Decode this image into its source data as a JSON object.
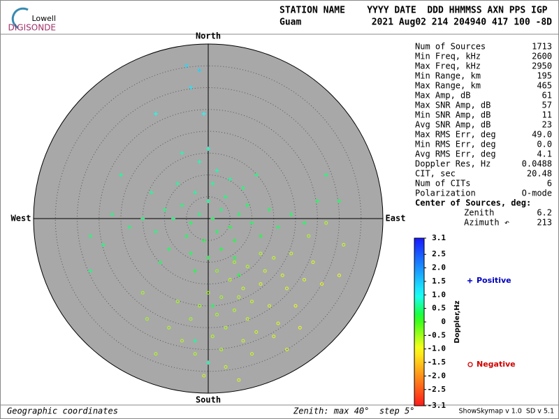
{
  "logo": {
    "top": "Lowell",
    "bottom": "DIGISONDE"
  },
  "header": {
    "labels": "STATION NAME    YYYY DATE  DDD HHMMSS AXN PPS IGP",
    "station": "Guam",
    "values": "2021 Aug02 214 204940 417 100 -8D"
  },
  "stats": [
    [
      "Num of Sources",
      "1713"
    ],
    [
      "Min Freq, kHz",
      "2600"
    ],
    [
      "Max Freq, kHz",
      "2950"
    ],
    [
      "Min Range, km",
      "195"
    ],
    [
      "Max Range, km",
      "465"
    ],
    [
      "Max Amp, dB",
      "61"
    ],
    [
      "Max SNR Amp, dB",
      "57"
    ],
    [
      "Min SNR Amp, dB",
      "11"
    ],
    [
      "Avg SNR Amp, dB",
      "23"
    ],
    [
      "Max RMS Err, deg",
      "49.0"
    ],
    [
      "Min RMS Err, deg",
      "0.0"
    ],
    [
      "Avg RMS Err, deg",
      "4.1"
    ],
    [
      "Doppler Res, Hz",
      "0.0488"
    ],
    [
      "CIT, sec",
      "20.48"
    ],
    [
      "Num of CITs",
      "6"
    ],
    [
      "Polarization",
      "O-mode"
    ]
  ],
  "center": {
    "title": "Center of Sources, deg:",
    "rows": [
      [
        "Zenith",
        "6.2"
      ],
      [
        "Azimuth ↶",
        "213"
      ]
    ]
  },
  "footer": {
    "left": "Geographic coordinates",
    "middle": "Zenith: max 40°  step 5°",
    "right": "ShowSkymap v 1.0  SD v 5.1"
  },
  "chart_data": {
    "type": "skymap",
    "directions": {
      "north": "North",
      "south": "South",
      "west": "West",
      "east": "East"
    },
    "zenith_max": 40,
    "zenith_step": 5,
    "colorbar": {
      "label": "Doppler,Hz",
      "ylim": [
        -3.1,
        3.1
      ],
      "yticks": [
        3.1,
        2.5,
        {
          "value": 2,
          "label": "2.0"
        },
        1.5,
        {
          "value": 1,
          "label": "1.0"
        },
        0.5,
        0,
        -0.5,
        {
          "value": -1,
          "label": "-1.0"
        },
        -1.5,
        {
          "value": -2,
          "label": "-2.0"
        },
        -2.5,
        -3.1
      ]
    },
    "series": [
      {
        "name": "Positive",
        "color": "#0000c0",
        "marker": "+",
        "points": [
          [
            -2,
            1,
            0.5
          ],
          [
            1,
            0,
            0.4
          ],
          [
            3,
            2,
            0.5
          ],
          [
            -4,
            -1,
            0.4
          ],
          [
            5,
            -2,
            0.3
          ],
          [
            0,
            4,
            0.6
          ],
          [
            2,
            -3,
            0.4
          ],
          [
            -6,
            3,
            0.5
          ],
          [
            7,
            1,
            0.4
          ],
          [
            -1,
            -5,
            0.3
          ],
          [
            4,
            5,
            0.5
          ],
          [
            -3,
            6,
            0.6
          ],
          [
            6,
            -5,
            0.3
          ],
          [
            -8,
            0,
            0.5
          ],
          [
            9,
            3,
            0.4
          ],
          [
            1,
            8,
            0.6
          ],
          [
            -5,
            -4,
            0.4
          ],
          [
            3,
            -7,
            0.3
          ],
          [
            10,
            -1,
            0.4
          ],
          [
            -10,
            2,
            0.5
          ],
          [
            0,
            -9,
            0.3
          ],
          [
            2,
            11,
            0.7
          ],
          [
            -7,
            8,
            0.6
          ],
          [
            8,
            7,
            0.5
          ],
          [
            -12,
            -3,
            0.5
          ],
          [
            12,
            -4,
            0.3
          ],
          [
            5,
            9,
            0.6
          ],
          [
            -2,
            13,
            0.7
          ],
          [
            14,
            2,
            0.4
          ],
          [
            -15,
            0,
            0.5
          ],
          [
            -4,
            -8,
            0.4
          ],
          [
            6,
            -9,
            0.3
          ],
          [
            -9,
            -7,
            0.4
          ],
          [
            11,
            10,
            0.5
          ],
          [
            -13,
            6,
            0.6
          ],
          [
            16,
            -2,
            0.4
          ],
          [
            -18,
            -2,
            0.5
          ],
          [
            0,
            16,
            0.8
          ],
          [
            -6,
            15,
            0.7
          ],
          [
            19,
            1,
            0.4
          ],
          [
            -22,
            1,
            0.5
          ],
          [
            22,
            -1,
            0.4
          ],
          [
            -3,
            -12,
            0.3
          ],
          [
            7,
            -13,
            0.3
          ],
          [
            -11,
            -10,
            0.4
          ],
          [
            -24,
            -6,
            0.5
          ],
          [
            25,
            4,
            0.4
          ],
          [
            -20,
            10,
            0.6
          ],
          [
            -27,
            -4,
            0.5
          ],
          [
            -1,
            24,
            1.0
          ],
          [
            -4,
            30,
            1.2
          ],
          [
            -2,
            34,
            1.4
          ],
          [
            -5,
            35,
            1.3
          ],
          [
            -27,
            -12,
            0.5
          ],
          [
            30,
            4,
            0.4
          ],
          [
            27,
            10,
            0.5
          ],
          [
            -12,
            24,
            0.9
          ],
          [
            -3,
            -28,
            0.6
          ],
          [
            0,
            -33,
            0.7
          ],
          [
            1,
            -20,
            0.4
          ]
        ]
      },
      {
        "name": "Negative",
        "color": "#d00000",
        "marker": "o",
        "points": [
          [
            5,
            -14,
            -0.6
          ],
          [
            8,
            -16,
            -0.7
          ],
          [
            3,
            -18,
            -0.5
          ],
          [
            10,
            -19,
            -0.7
          ],
          [
            6,
            -21,
            -0.6
          ],
          [
            12,
            -15,
            -0.8
          ],
          [
            2,
            -22,
            -0.5
          ],
          [
            9,
            -23,
            -0.7
          ],
          [
            14,
            -20,
            -0.8
          ],
          [
            -2,
            -20,
            -0.5
          ],
          [
            4,
            -25,
            -0.6
          ],
          [
            11,
            -26,
            -0.7
          ],
          [
            16,
            -24,
            -0.8
          ],
          [
            0,
            -17,
            -0.5
          ],
          [
            7,
            -18,
            -0.6
          ],
          [
            13,
            -12,
            -0.7
          ],
          [
            18,
            -16,
            -0.8
          ],
          [
            -4,
            -23,
            -0.5
          ],
          [
            1,
            -27,
            -0.6
          ],
          [
            8,
            -28,
            -0.7
          ],
          [
            15,
            -27,
            -0.8
          ],
          [
            20,
            -20,
            -0.9
          ],
          [
            -7,
            -19,
            -0.5
          ],
          [
            -9,
            -25,
            -0.6
          ],
          [
            3,
            -30,
            -0.6
          ],
          [
            10,
            -31,
            -0.7
          ],
          [
            17,
            -13,
            -0.8
          ],
          [
            22,
            -14,
            -0.8
          ],
          [
            24,
            -10,
            -0.8
          ],
          [
            -14,
            -23,
            -0.5
          ],
          [
            -15,
            -17,
            -0.5
          ],
          [
            26,
            -15,
            -0.9
          ],
          [
            18,
            -30,
            -0.8
          ],
          [
            -6,
            -28,
            -0.6
          ],
          [
            6,
            -10,
            -0.5
          ],
          [
            12,
            -8,
            -0.6
          ],
          [
            19,
            -8,
            -0.7
          ],
          [
            27,
            -1,
            -0.6
          ],
          [
            31,
            -6,
            -0.7
          ],
          [
            -1,
            -36,
            -0.7
          ],
          [
            7,
            -37,
            -0.8
          ],
          [
            30,
            -13,
            -0.9
          ],
          [
            21,
            -25,
            -0.9
          ],
          [
            -12,
            -31,
            -0.6
          ],
          [
            2,
            -12,
            -0.4
          ],
          [
            15,
            -9,
            -0.7
          ],
          [
            9,
            -11,
            -0.6
          ],
          [
            4,
            -34,
            -0.7
          ],
          [
            -3,
            -31,
            -0.6
          ],
          [
            23,
            -4,
            -0.6
          ]
        ]
      }
    ]
  }
}
